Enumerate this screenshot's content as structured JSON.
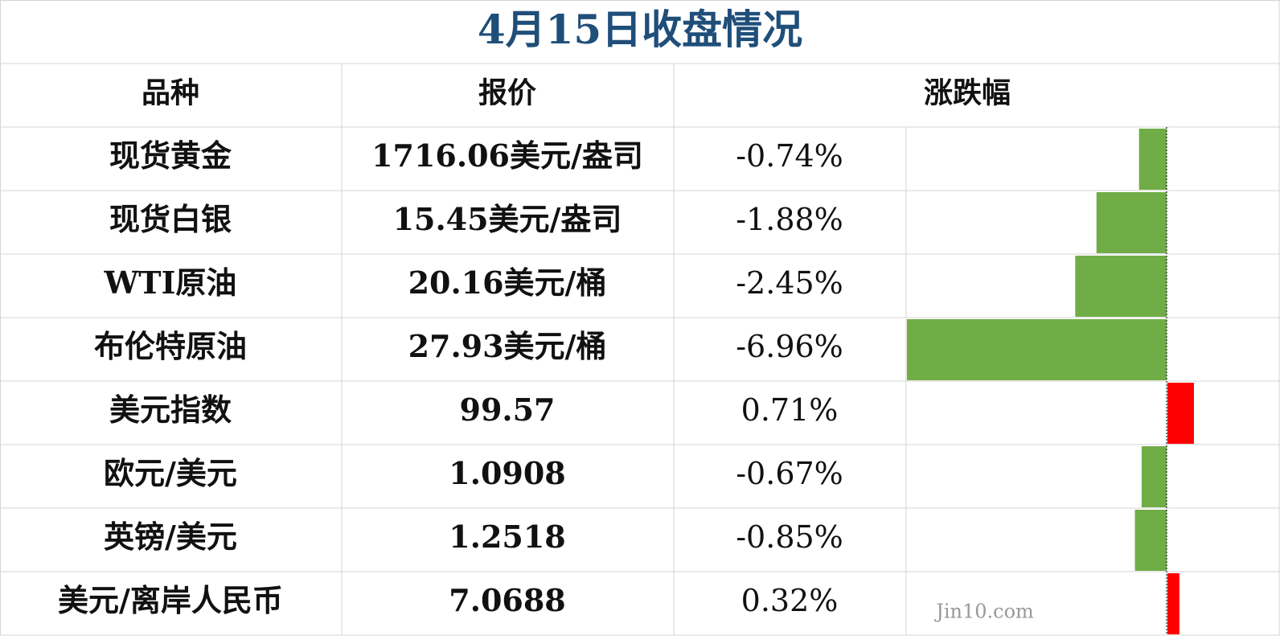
{
  "title": "4月15日收盘情况",
  "table": {
    "header": [
      "品种",
      "报价",
      "涨跌幅"
    ],
    "rows": [
      {
        "name": "现货黄金",
        "price": "1716.06美元/盎司",
        "change": -0.74,
        "change_label": "-0.74%"
      },
      {
        "name": "现货白银",
        "price": "15.45美元/盎司",
        "change": -1.88,
        "change_label": "-1.88%"
      },
      {
        "name": "WTI原油",
        "price": "20.16美元/桶",
        "change": -2.45,
        "change_label": "-2.45%"
      },
      {
        "name": "布伦特原油",
        "price": "27.93美元/桶",
        "change": -6.96,
        "change_label": "-6.96%"
      },
      {
        "name": "美元指数",
        "price": "99.57",
        "change": 0.71,
        "change_label": "0.71%"
      },
      {
        "name": "欧元/美元",
        "price": "1.0908",
        "change": -0.67,
        "change_label": "-0.67%"
      },
      {
        "name": "英镑/美元",
        "price": "1.2518",
        "change": -0.85,
        "change_label": "-0.85%"
      },
      {
        "name": "美元/离岸人民币",
        "price": "7.0688",
        "change": 0.32,
        "change_label": "0.32%"
      }
    ],
    "colors": {
      "negative": "#70ad47",
      "positive": "#ff0000"
    }
  },
  "watermark": "Jin10.com"
}
